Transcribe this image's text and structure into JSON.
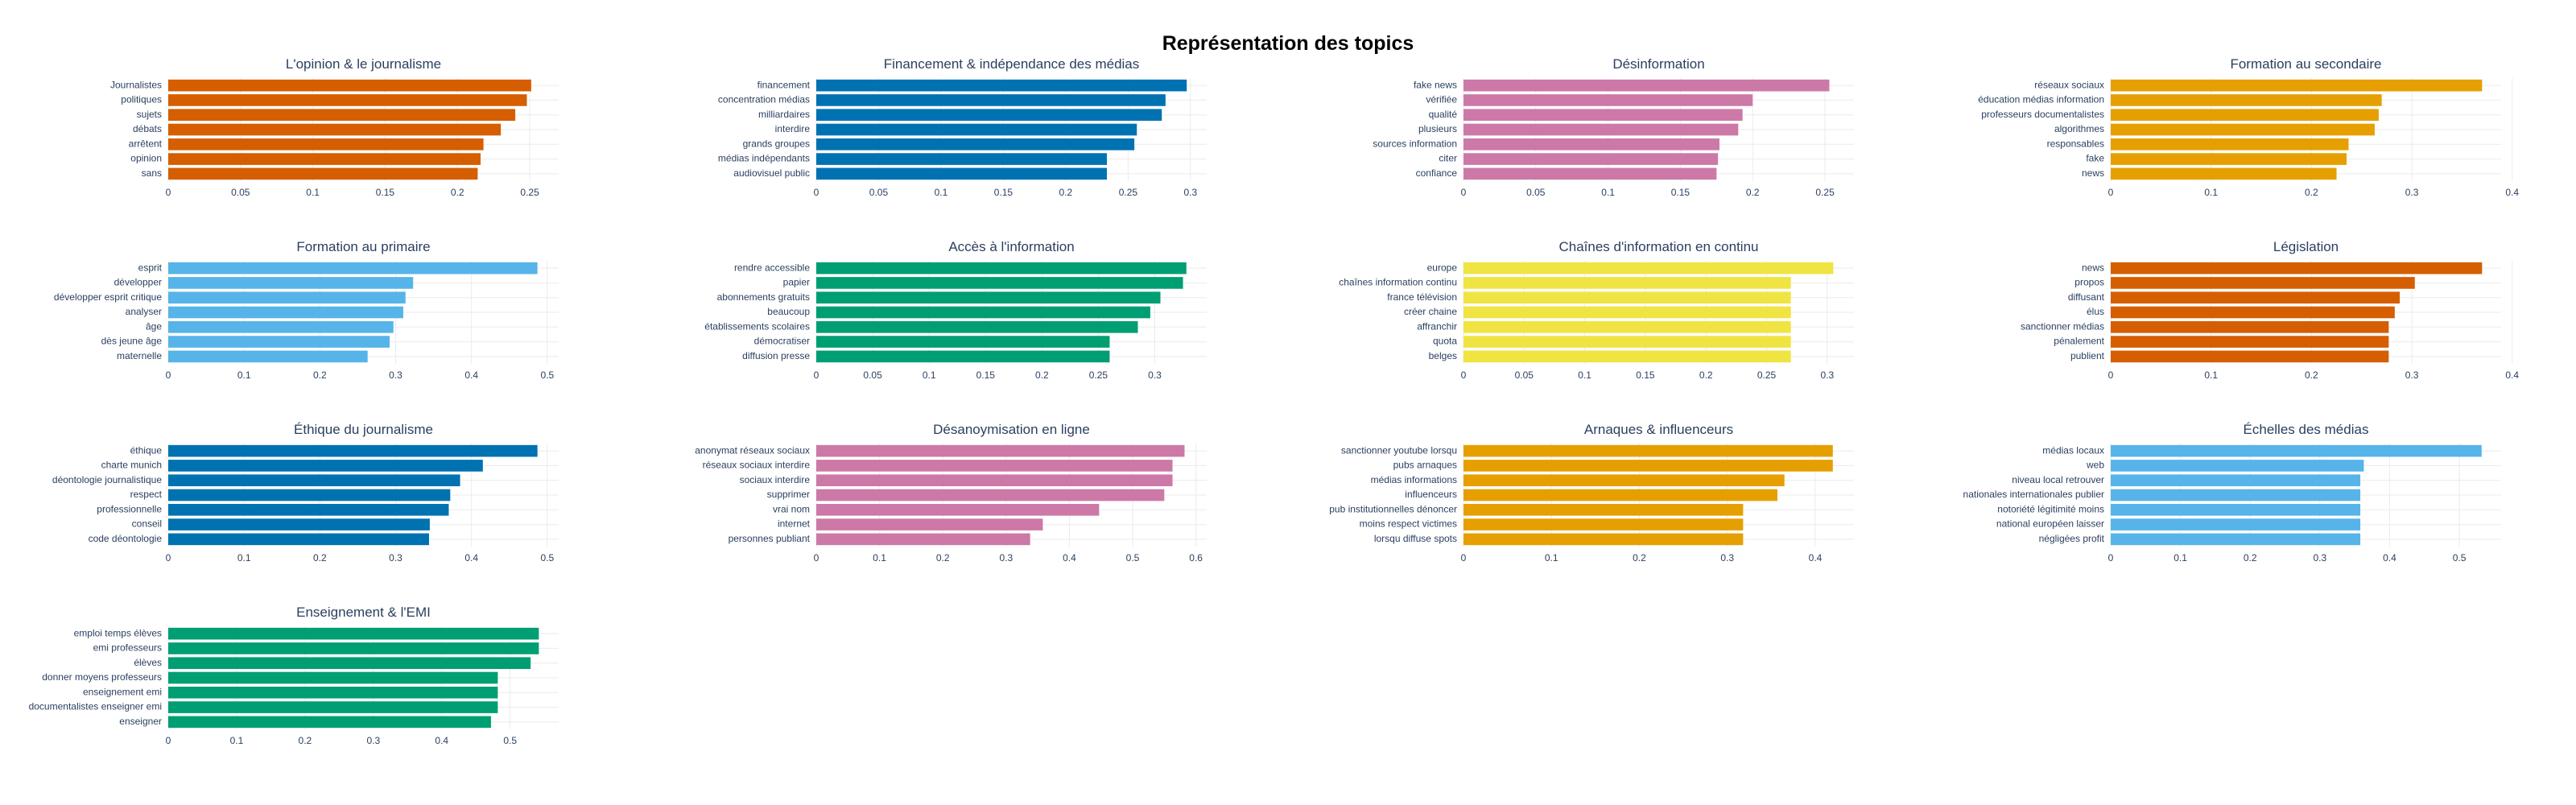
{
  "title": "Représentation des topics",
  "colors": {
    "vermillion": "#D55E00",
    "blue": "#0072B2",
    "pink": "#CC79A7",
    "orange": "#E69F00",
    "skyblue": "#56B4E9",
    "green": "#009E73",
    "yellow": "#F0E442"
  },
  "chart_data": [
    {
      "type": "bar",
      "orientation": "horizontal",
      "title": "L'opinion & le journalisme",
      "color": "#D55E00",
      "categories": [
        "Journalistes",
        "politiques",
        "sujets",
        "débats",
        "arrêtent",
        "opinion",
        "sans"
      ],
      "values": [
        0.251,
        0.248,
        0.24,
        0.23,
        0.218,
        0.216,
        0.214
      ],
      "ticks": [
        0,
        0.05,
        0.1,
        0.15,
        0.2,
        0.25
      ],
      "tick_labels": [
        "0",
        "0.05",
        "0.1",
        "0.15",
        "0.2",
        "0.25"
      ],
      "xlim": [
        0,
        0.27
      ]
    },
    {
      "type": "bar",
      "orientation": "horizontal",
      "title": "Financement & indépendance des médias",
      "color": "#0072B2",
      "categories": [
        "financement",
        "concentration médias",
        "milliardaires",
        "interdire",
        "grands groupes",
        "médias indépendants",
        "audiovisuel public"
      ],
      "values": [
        0.297,
        0.28,
        0.277,
        0.257,
        0.255,
        0.233,
        0.233
      ],
      "ticks": [
        0,
        0.05,
        0.1,
        0.15,
        0.2,
        0.25,
        0.3
      ],
      "tick_labels": [
        "0",
        "0.05",
        "0.1",
        "0.15",
        "0.2",
        "0.25",
        "0.3"
      ],
      "xlim": [
        0,
        0.313
      ]
    },
    {
      "type": "bar",
      "orientation": "horizontal",
      "title": "Désinformation",
      "color": "#CC79A7",
      "categories": [
        "fake news",
        "vérifiée",
        "qualité",
        "plusieurs",
        "sources information",
        "citer",
        "confiance"
      ],
      "values": [
        0.253,
        0.2,
        0.193,
        0.19,
        0.177,
        0.176,
        0.175
      ],
      "ticks": [
        0,
        0.05,
        0.1,
        0.15,
        0.2,
        0.25
      ],
      "tick_labels": [
        "0",
        "0.05",
        "0.1",
        "0.15",
        "0.2",
        "0.25"
      ],
      "xlim": [
        0,
        0.27
      ]
    },
    {
      "type": "bar",
      "orientation": "horizontal",
      "title": "Formation au secondaire",
      "color": "#E69F00",
      "categories": [
        "réseaux sociaux",
        "éducation médias information",
        "professeurs documentalistes",
        "algorithmes",
        "responsables",
        "fake",
        "news"
      ],
      "values": [
        0.37,
        0.27,
        0.267,
        0.263,
        0.237,
        0.235,
        0.225
      ],
      "ticks": [
        0,
        0.1,
        0.2,
        0.3,
        0.4
      ],
      "tick_labels": [
        "0",
        "0.1",
        "0.2",
        "0.3",
        "0.4"
      ],
      "xlim": [
        0,
        0.389
      ]
    },
    {
      "type": "bar",
      "orientation": "horizontal",
      "title": "Formation au primaire",
      "color": "#56B4E9",
      "categories": [
        "esprit",
        "développer",
        "développer esprit critique",
        "analyser",
        "âge",
        "dès jeune âge",
        "maternelle"
      ],
      "values": [
        0.487,
        0.323,
        0.313,
        0.31,
        0.297,
        0.292,
        0.263
      ],
      "ticks": [
        0,
        0.1,
        0.2,
        0.3,
        0.4,
        0.5
      ],
      "tick_labels": [
        "0",
        "0.1",
        "0.2",
        "0.3",
        "0.4",
        "0.5"
      ],
      "xlim": [
        0,
        0.515
      ]
    },
    {
      "type": "bar",
      "orientation": "horizontal",
      "title": "Accès à l'information",
      "color": "#009E73",
      "categories": [
        "rendre accessible",
        "papier",
        "abonnements gratuits",
        "beaucoup",
        "établissements scolaires",
        "démocratiser",
        "diffusion presse"
      ],
      "values": [
        0.328,
        0.325,
        0.305,
        0.296,
        0.285,
        0.26,
        0.26
      ],
      "ticks": [
        0,
        0.05,
        0.1,
        0.15,
        0.2,
        0.25,
        0.3
      ],
      "tick_labels": [
        "0",
        "0.05",
        "0.1",
        "0.15",
        "0.2",
        "0.25",
        "0.3"
      ],
      "xlim": [
        0,
        0.346
      ]
    },
    {
      "type": "bar",
      "orientation": "horizontal",
      "title": "Chaînes d'information en continu",
      "color": "#F0E442",
      "categories": [
        "europe",
        "chaînes information continu",
        "france télévision",
        "créer chaine",
        "affranchir",
        "quota",
        "belges"
      ],
      "values": [
        0.305,
        0.27,
        0.27,
        0.27,
        0.27,
        0.27,
        0.27
      ],
      "ticks": [
        0,
        0.05,
        0.1,
        0.15,
        0.2,
        0.25,
        0.3
      ],
      "tick_labels": [
        "0",
        "0.05",
        "0.1",
        "0.15",
        "0.2",
        "0.25",
        "0.3"
      ],
      "xlim": [
        0,
        0.322
      ]
    },
    {
      "type": "bar",
      "orientation": "horizontal",
      "title": "Législation",
      "color": "#D55E00",
      "categories": [
        "news",
        "propos",
        "diffusant",
        "élus",
        "sanctionner médias",
        "pénalement",
        "publient"
      ],
      "values": [
        0.37,
        0.303,
        0.288,
        0.283,
        0.277,
        0.277,
        0.277
      ],
      "ticks": [
        0,
        0.1,
        0.2,
        0.3,
        0.4
      ],
      "tick_labels": [
        "0",
        "0.1",
        "0.2",
        "0.3",
        "0.4"
      ],
      "xlim": [
        0,
        0.389
      ]
    },
    {
      "type": "bar",
      "orientation": "horizontal",
      "title": "Éthique du journalisme",
      "color": "#0072B2",
      "categories": [
        "éthique",
        "charte munich",
        "déontologie journalistique",
        "respect",
        "professionnelle",
        "conseil",
        "code déontologie"
      ],
      "values": [
        0.487,
        0.415,
        0.385,
        0.372,
        0.37,
        0.345,
        0.344
      ],
      "ticks": [
        0,
        0.1,
        0.2,
        0.3,
        0.4,
        0.5
      ],
      "tick_labels": [
        "0",
        "0.1",
        "0.2",
        "0.3",
        "0.4",
        "0.5"
      ],
      "xlim": [
        0,
        0.515
      ]
    },
    {
      "type": "bar",
      "orientation": "horizontal",
      "title": "Désanoymisation en ligne",
      "color": "#CC79A7",
      "categories": [
        "anonymat réseaux sociaux",
        "réseaux sociaux interdire",
        "sociaux interdire",
        "supprimer",
        "vrai nom",
        "internet",
        "personnes publiant"
      ],
      "values": [
        0.582,
        0.563,
        0.563,
        0.55,
        0.447,
        0.358,
        0.338
      ],
      "ticks": [
        0,
        0.1,
        0.2,
        0.3,
        0.4,
        0.5,
        0.6
      ],
      "tick_labels": [
        "0",
        "0.1",
        "0.2",
        "0.3",
        "0.4",
        "0.5",
        "0.6"
      ],
      "xlim": [
        0,
        0.617
      ]
    },
    {
      "type": "bar",
      "orientation": "horizontal",
      "title": "Arnaques & influenceurs",
      "color": "#E69F00",
      "categories": [
        "sanctionner youtube lorsqu",
        "pubs arnaques",
        "médias informations",
        "influenceurs",
        "pub institutionnelles dénoncer",
        "moins respect victimes",
        "lorsqu diffuse spots"
      ],
      "values": [
        0.42,
        0.42,
        0.365,
        0.357,
        0.318,
        0.318,
        0.318
      ],
      "ticks": [
        0,
        0.1,
        0.2,
        0.3,
        0.4
      ],
      "tick_labels": [
        "0",
        "0.1",
        "0.2",
        "0.3",
        "0.4"
      ],
      "xlim": [
        0,
        0.444
      ]
    },
    {
      "type": "bar",
      "orientation": "horizontal",
      "title": "Échelles des médias",
      "color": "#56B4E9",
      "categories": [
        "médias locaux",
        "web",
        "niveau local retrouver",
        "nationales internationales publier",
        "notoriété légitimité moins",
        "national européen laisser",
        "négligées profit"
      ],
      "values": [
        0.532,
        0.363,
        0.358,
        0.358,
        0.358,
        0.358,
        0.358
      ],
      "ticks": [
        0,
        0.1,
        0.2,
        0.3,
        0.4,
        0.5
      ],
      "tick_labels": [
        "0",
        "0.1",
        "0.2",
        "0.3",
        "0.4",
        "0.5"
      ],
      "xlim": [
        0,
        0.56
      ]
    },
    {
      "type": "bar",
      "orientation": "horizontal",
      "title": "Enseignement & l'EMI",
      "color": "#009E73",
      "categories": [
        "emploi temps élèves",
        "emi professeurs",
        "élèves",
        "donner moyens professeurs",
        "enseignement emi",
        "documentalistes enseigner emi",
        "enseigner"
      ],
      "values": [
        0.542,
        0.542,
        0.53,
        0.482,
        0.482,
        0.482,
        0.472
      ],
      "ticks": [
        0,
        0.1,
        0.2,
        0.3,
        0.4,
        0.5
      ],
      "tick_labels": [
        "0",
        "0.1",
        "0.2",
        "0.3",
        "0.4",
        "0.5"
      ],
      "xlim": [
        0,
        0.571
      ]
    }
  ]
}
